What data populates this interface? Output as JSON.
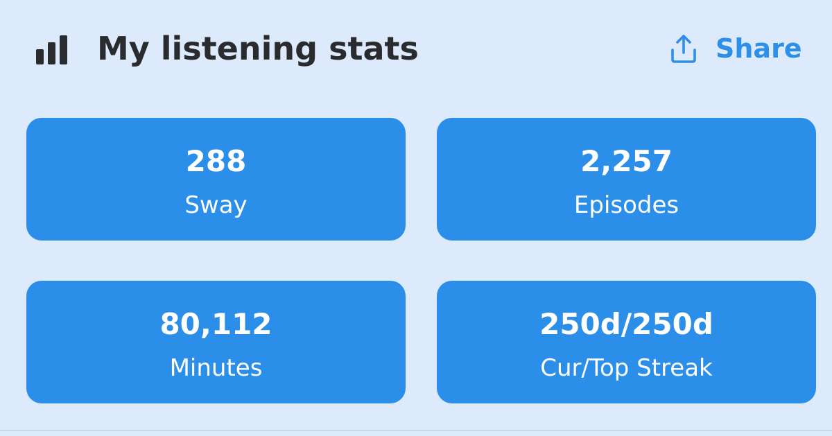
{
  "header": {
    "title": "My listening stats",
    "icon": "bar-chart-icon",
    "share_label": "Share",
    "share_icon": "share-upload-icon"
  },
  "colors": {
    "background": "#dceafb",
    "tile": "#2b8ee8",
    "accent": "#2d8fe8",
    "title_text": "#2a2b2e"
  },
  "stats": [
    {
      "value": "288",
      "label": "Sway"
    },
    {
      "value": "2,257",
      "label": "Episodes"
    },
    {
      "value": "80,112",
      "label": "Minutes"
    },
    {
      "value": "250d/250d",
      "label": "Cur/Top Streak"
    }
  ]
}
